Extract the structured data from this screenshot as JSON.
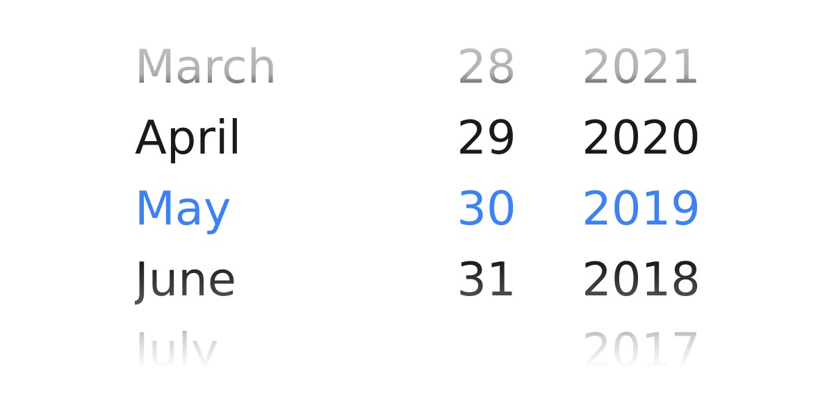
{
  "picker": {
    "selected_color": "#3b82f6",
    "months": [
      {
        "label": "March",
        "selected": false
      },
      {
        "label": "April",
        "selected": false
      },
      {
        "label": "May",
        "selected": true
      },
      {
        "label": "June",
        "selected": false
      },
      {
        "label": "July",
        "selected": false
      }
    ],
    "days": [
      {
        "label": "28",
        "selected": false
      },
      {
        "label": "29",
        "selected": false
      },
      {
        "label": "30",
        "selected": true
      },
      {
        "label": "31",
        "selected": false
      },
      {
        "label": "",
        "selected": false
      }
    ],
    "years": [
      {
        "label": "2021",
        "selected": false
      },
      {
        "label": "2020",
        "selected": false
      },
      {
        "label": "2019",
        "selected": true
      },
      {
        "label": "2018",
        "selected": false
      },
      {
        "label": "2017",
        "selected": false
      }
    ]
  }
}
